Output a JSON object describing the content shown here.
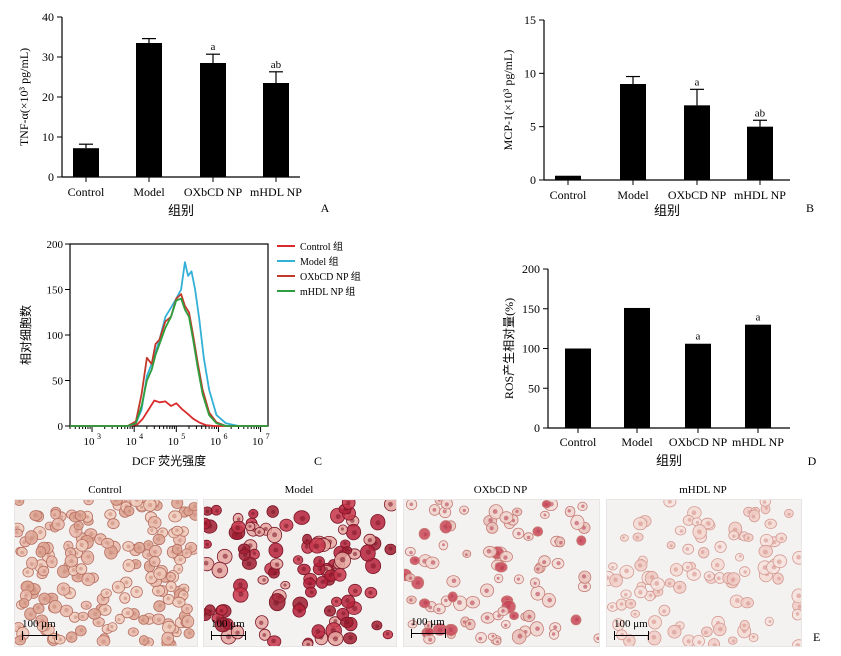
{
  "chart_data": [
    {
      "id": "A",
      "type": "bar",
      "panel_label": "A",
      "ylabel": "TNF-α(×10³ pg/mL)",
      "xlabel": "组别",
      "categories": [
        "Control",
        "Model",
        "OXbCD NP",
        "mHDL NP"
      ],
      "values": [
        7.2,
        33.5,
        28.5,
        23.5
      ],
      "errors": [
        1.0,
        1.1,
        2.2,
        2.8
      ],
      "annotations": [
        "",
        "",
        "a",
        "ab"
      ],
      "ylim": [
        0,
        40
      ],
      "yticks": [
        "0",
        "10",
        "20",
        "30",
        "40"
      ]
    },
    {
      "id": "B",
      "type": "bar",
      "panel_label": "B",
      "ylabel": "MCP-1(×10³ pg/mL)",
      "xlabel": "组别",
      "categories": [
        "Control",
        "Model",
        "OXbCD NP",
        "mHDL NP"
      ],
      "values": [
        0.4,
        9.0,
        7.0,
        5.0
      ],
      "errors": [
        0,
        0.7,
        1.5,
        0.6
      ],
      "annotations": [
        "",
        "",
        "a",
        "ab"
      ],
      "ylim": [
        0,
        15
      ],
      "yticks": [
        "0",
        "5",
        "10",
        "15"
      ]
    },
    {
      "id": "C",
      "type": "line",
      "panel_label": "C",
      "ylabel": "相对细胞数",
      "xlabel": "DCF 荧光强度",
      "xscale": "log",
      "xlim": [
        300,
        15000000
      ],
      "ylim": [
        0,
        200
      ],
      "yticks": [
        "0",
        "50",
        "100",
        "150",
        "200"
      ],
      "xticks": [
        {
          "value": 1000,
          "label": "10",
          "exp": "3"
        },
        {
          "value": 10000,
          "label": "10",
          "exp": "4"
        },
        {
          "value": 100000,
          "label": "10",
          "exp": "5"
        },
        {
          "value": 1000000,
          "label": "10",
          "exp": "6"
        },
        {
          "value": 10000000,
          "label": "10",
          "exp": "7"
        }
      ],
      "legend_position": "right",
      "series": [
        {
          "name": "Control 组",
          "color": "#d92b2b",
          "x": [
            300,
            2000,
            7000,
            12000,
            16000,
            22000,
            30000,
            40000,
            55000,
            75000,
            100000,
            140000,
            180000,
            250000,
            350000,
            500000,
            800000,
            2000000,
            15000000
          ],
          "y": [
            0,
            0,
            0,
            2,
            8,
            18,
            28,
            26,
            27,
            22,
            25,
            18,
            14,
            8,
            4,
            1,
            0,
            0,
            0
          ]
        },
        {
          "name": "Model 组",
          "color": "#33b0d6",
          "x": [
            300,
            2000,
            7000,
            11000,
            15000,
            20000,
            28000,
            40000,
            55000,
            75000,
            100000,
            130000,
            160000,
            190000,
            230000,
            280000,
            350000,
            450000,
            600000,
            900000,
            1500000,
            3000000,
            15000000
          ],
          "y": [
            0,
            0,
            0,
            3,
            18,
            55,
            72,
            95,
            120,
            130,
            140,
            150,
            180,
            165,
            170,
            150,
            118,
            75,
            40,
            12,
            3,
            0,
            0
          ]
        },
        {
          "name": "OXbCD NP 组",
          "color": "#c0392b",
          "x": [
            300,
            2000,
            7000,
            11000,
            15000,
            20000,
            26000,
            32000,
            40000,
            55000,
            75000,
            100000,
            130000,
            160000,
            200000,
            250000,
            320000,
            420000,
            600000,
            900000,
            1500000,
            15000000
          ],
          "y": [
            0,
            0,
            0,
            5,
            35,
            75,
            68,
            90,
            95,
            115,
            120,
            140,
            145,
            132,
            125,
            100,
            70,
            40,
            15,
            4,
            0,
            0
          ]
        },
        {
          "name": "mHDL NP 组",
          "color": "#2e9e3e",
          "x": [
            300,
            2000,
            7000,
            11000,
            15000,
            20000,
            26000,
            32000,
            40000,
            55000,
            75000,
            100000,
            130000,
            160000,
            200000,
            250000,
            320000,
            420000,
            600000,
            900000,
            1500000,
            15000000
          ],
          "y": [
            0,
            0,
            0,
            3,
            22,
            50,
            62,
            78,
            90,
            108,
            120,
            138,
            140,
            128,
            120,
            95,
            65,
            35,
            12,
            3,
            0,
            0
          ]
        }
      ]
    },
    {
      "id": "D",
      "type": "bar",
      "panel_label": "D",
      "ylabel": "ROS产生相对量(%)",
      "xlabel": "组别",
      "categories": [
        "Control",
        "Model",
        "OXbCD NP",
        "mHDL NP"
      ],
      "values": [
        100,
        151,
        106,
        130
      ],
      "errors": [
        0,
        0,
        0,
        0
      ],
      "annotations": [
        "",
        "",
        "a",
        "a"
      ],
      "ylim": [
        0,
        200
      ],
      "yticks": [
        "0",
        "50",
        "100",
        "150",
        "200"
      ]
    }
  ],
  "panel_e": {
    "label": "E",
    "images": [
      {
        "title": "Control",
        "scale": "100 μm"
      },
      {
        "title": "Model",
        "scale": "100 μm"
      },
      {
        "title": "OXbCD NP",
        "scale": "100 μm"
      },
      {
        "title": "mHDL NP",
        "scale": "100 μm"
      }
    ]
  },
  "colors": {
    "bar": "#000000",
    "axis": "#000000",
    "micro_background": "#f4f2f1"
  }
}
